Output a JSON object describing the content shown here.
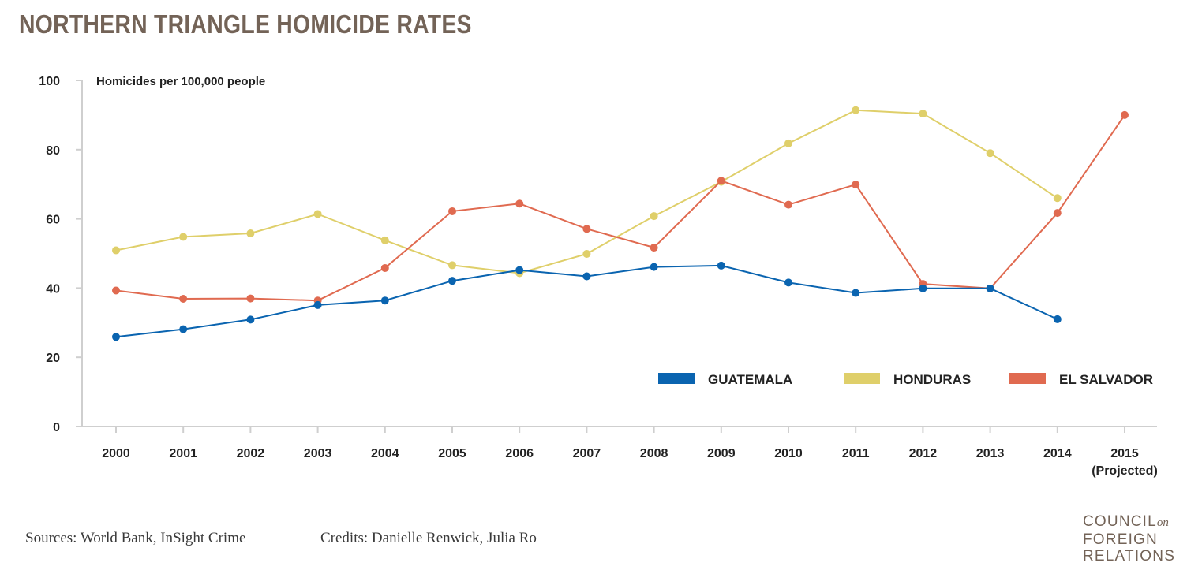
{
  "title": "NORTHERN TRIANGLE HOMICIDE RATES",
  "footer": {
    "sources": "Sources: World Bank, InSight Crime",
    "credits": "Credits: Danielle Renwick, Julia Ro"
  },
  "logo": {
    "line1": "COUNCIL",
    "line1_suffix": "on",
    "line2": "FOREIGN",
    "line3": "RELATIONS"
  },
  "chart_data": {
    "type": "line",
    "title": "NORTHERN TRIANGLE HOMICIDE RATES",
    "ylabel": "Homicides per 100,000 people",
    "xlabel": "",
    "ylim": [
      0,
      100
    ],
    "yticks": [
      0,
      20,
      40,
      60,
      80,
      100
    ],
    "categories": [
      "2000",
      "2001",
      "2002",
      "2003",
      "2004",
      "2005",
      "2006",
      "2007",
      "2008",
      "2009",
      "2010",
      "2011",
      "2012",
      "2013",
      "2014",
      "2015"
    ],
    "category_sublabels": {
      "15": "(Projected)"
    },
    "legend_position": "lower-right",
    "series": [
      {
        "name": "HONDURAS",
        "color": "#dfcf6a",
        "values": [
          50.9,
          54.8,
          55.8,
          61.4,
          53.8,
          46.6,
          44.3,
          49.9,
          60.8,
          70.7,
          81.8,
          91.4,
          90.4,
          79.0,
          66.0,
          null
        ]
      },
      {
        "name": "EL SALVADOR",
        "color": "#e06a50",
        "values": [
          39.3,
          36.9,
          37.0,
          36.4,
          45.8,
          62.2,
          64.4,
          57.1,
          51.7,
          71.0,
          64.1,
          69.9,
          41.2,
          39.9,
          61.7,
          90.0
        ]
      },
      {
        "name": "GUATEMALA",
        "color": "#0a64b0",
        "values": [
          25.9,
          28.1,
          30.9,
          35.1,
          36.4,
          42.1,
          45.2,
          43.4,
          46.1,
          46.5,
          41.6,
          38.6,
          39.9,
          39.9,
          31.0,
          null
        ]
      }
    ],
    "legend_order": [
      "GUATEMALA",
      "HONDURAS",
      "EL SALVADOR"
    ]
  }
}
